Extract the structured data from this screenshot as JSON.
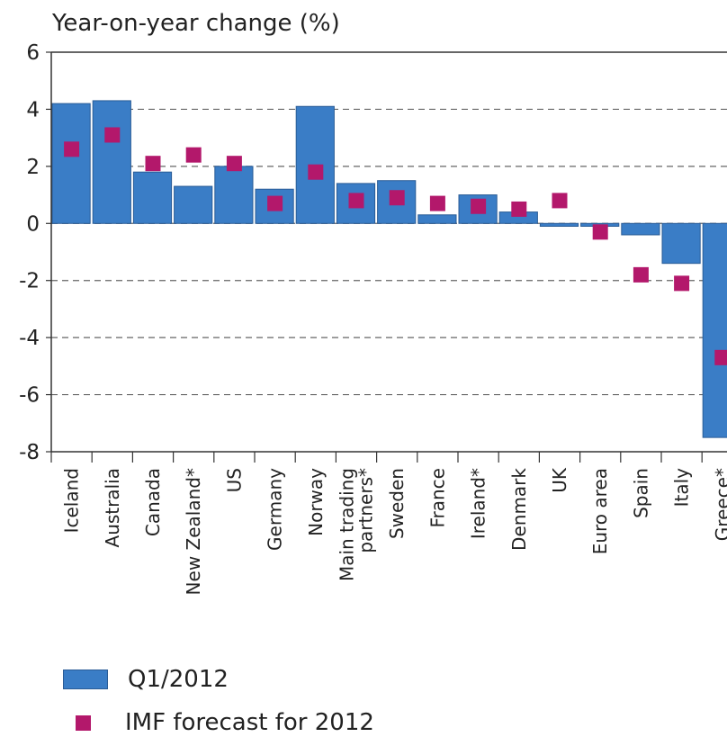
{
  "chart_data": {
    "type": "bar",
    "ylabel": "Year-on-year change (%)",
    "ylim": [
      -8,
      6
    ],
    "yticks": [
      6,
      4,
      2,
      0,
      -2,
      -4,
      -6,
      -8
    ],
    "grid": "dashed horizontal",
    "categories": [
      "Iceland",
      "Australia",
      "Canada",
      "New Zealand*",
      "US",
      "Germany",
      "Norway",
      "Main trading partners*",
      "Sweden",
      "France",
      "Ireland*",
      "Denmark",
      "UK",
      "Euro area",
      "Spain",
      "Italy",
      "Greece*"
    ],
    "category_lines": [
      [
        "Iceland"
      ],
      [
        "Australia"
      ],
      [
        "Canada"
      ],
      [
        "New Zealand*"
      ],
      [
        "US"
      ],
      [
        "Germany"
      ],
      [
        "Norway"
      ],
      [
        "Main trading",
        "partners*"
      ],
      [
        "Sweden"
      ],
      [
        "France"
      ],
      [
        "Ireland*"
      ],
      [
        "Denmark"
      ],
      [
        "UK"
      ],
      [
        "Euro area"
      ],
      [
        "Spain"
      ],
      [
        "Italy"
      ],
      [
        "Greece*"
      ]
    ],
    "series": [
      {
        "name": "Q1/2012",
        "kind": "bar",
        "color": "#3a7dc6",
        "values": [
          4.2,
          4.3,
          1.8,
          1.3,
          2.0,
          1.2,
          4.1,
          1.4,
          1.5,
          0.3,
          1.0,
          0.4,
          -0.1,
          -0.1,
          -0.4,
          -1.4,
          -7.5
        ]
      },
      {
        "name": "IMF forecast for 2012",
        "kind": "marker",
        "color": "#b3186b",
        "values": [
          2.6,
          3.1,
          2.1,
          2.4,
          2.1,
          0.7,
          1.8,
          0.8,
          0.9,
          0.7,
          0.6,
          0.5,
          0.8,
          -0.3,
          -1.8,
          -2.1,
          -4.7
        ]
      }
    ],
    "legend_position": "bottom-left"
  },
  "legend": {
    "bar_label": "Q1/2012",
    "marker_label": "IMF forecast for 2012"
  }
}
